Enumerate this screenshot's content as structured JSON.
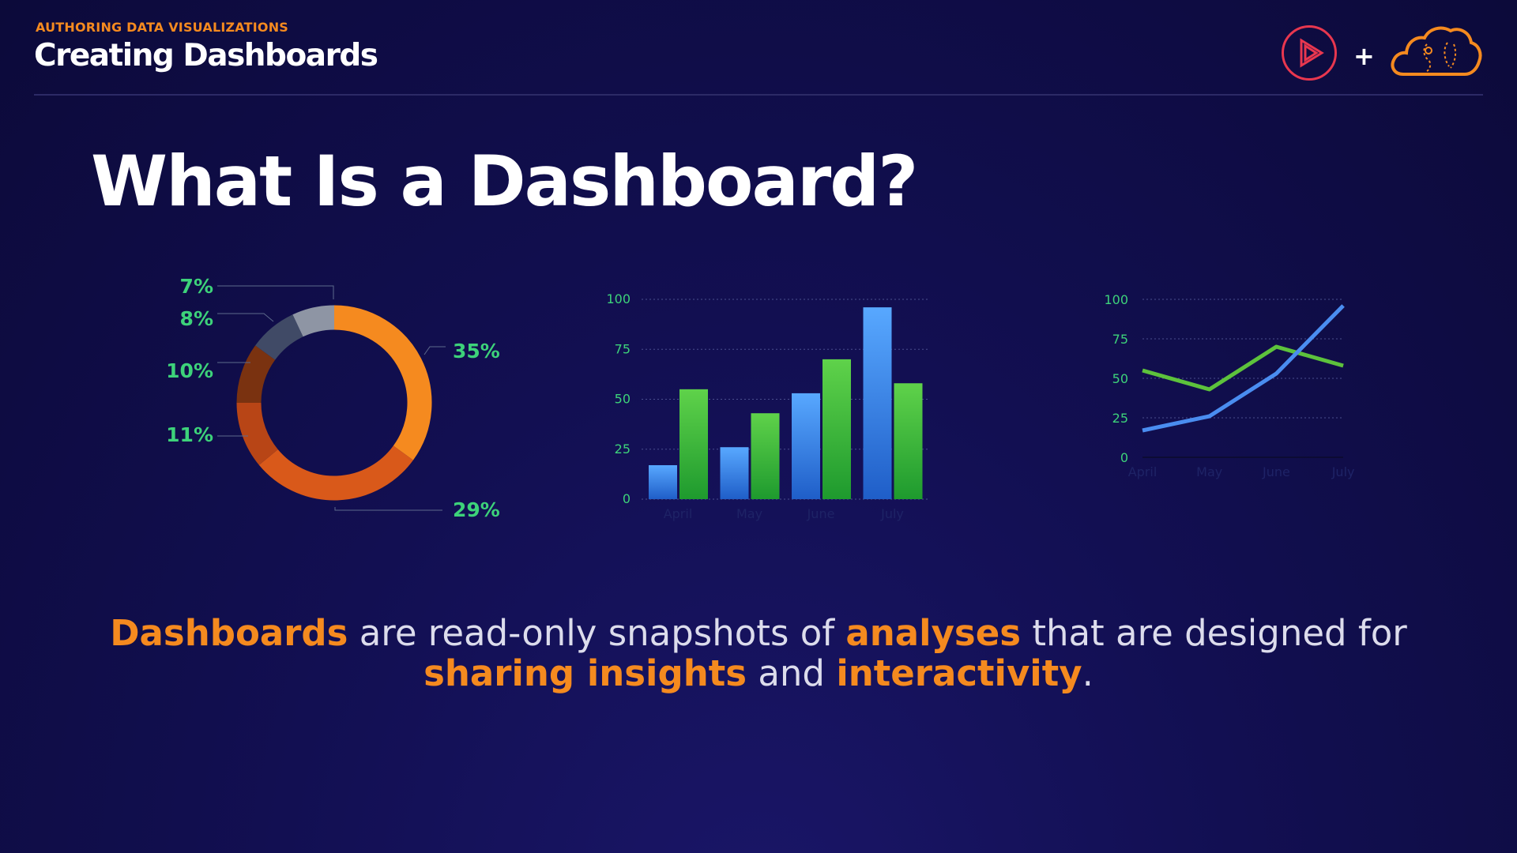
{
  "header": {
    "eyebrow": "AUTHORING DATA VISUALIZATIONS",
    "course_title": "Creating Dashboards",
    "plus": "+",
    "logos": [
      "pluralsight-play-logo",
      "aws-cloud-logo"
    ]
  },
  "slide": {
    "title": "What Is a Dashboard?",
    "summary": {
      "t1": "Dashboards",
      "t2": " are read-only snapshots of ",
      "t3": "analyses",
      "t4": " that are designed for",
      "t5": "sharing insights",
      "t6": " and ",
      "t7": "interactivity",
      "t8": "."
    }
  },
  "colors": {
    "accent": "#f58a1f",
    "label_green": "#3dd27a",
    "bar_blue": "#3f8ff0",
    "bar_green": "#3fbd3f",
    "line_blue": "#4a8df0",
    "line_green": "#5dc23c"
  },
  "chart_data": [
    {
      "type": "pie",
      "labels": [
        "35%",
        "29%",
        "11%",
        "10%",
        "8%",
        "7%"
      ],
      "values": [
        35,
        29,
        11,
        10,
        8,
        7
      ],
      "colors": [
        "#f58a1f",
        "#d9591a",
        "#b84516",
        "#7a3210",
        "#404a66",
        "#8e95a4"
      ]
    },
    {
      "type": "bar",
      "categories": [
        "April",
        "May",
        "June",
        "July"
      ],
      "series": [
        {
          "values": [
            17,
            26,
            53,
            96
          ],
          "color": "#3f8ff0"
        },
        {
          "values": [
            55,
            43,
            70,
            58
          ],
          "color": "#3fbd3f"
        }
      ],
      "yticks": [
        "0",
        "25",
        "50",
        "75",
        "100"
      ],
      "ylim": [
        0,
        100
      ],
      "grid": true
    },
    {
      "type": "line",
      "categories": [
        "April",
        "May",
        "June",
        "July"
      ],
      "series": [
        {
          "values": [
            55,
            43,
            70,
            58
          ],
          "color": "#5dc23c"
        },
        {
          "values": [
            17,
            26,
            53,
            96
          ],
          "color": "#4a8df0"
        }
      ],
      "yticks": [
        "0",
        "25",
        "50",
        "75",
        "100"
      ],
      "ylim": [
        0,
        100
      ],
      "grid": true
    }
  ]
}
